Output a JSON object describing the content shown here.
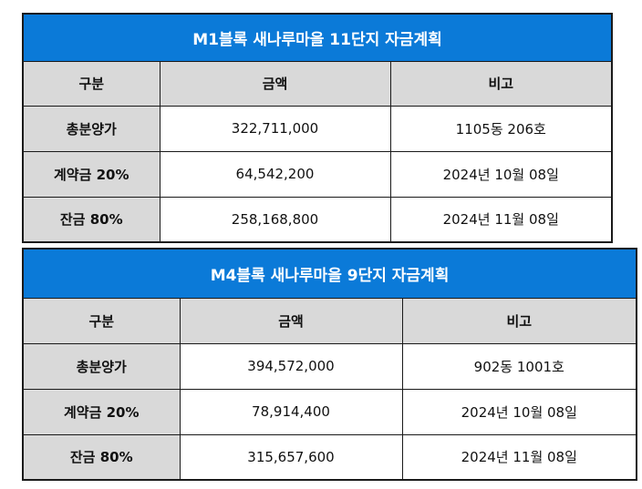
{
  "tables": [
    {
      "title": "M1블록 새나루마을 11단지 자금계획",
      "headers": [
        "구분",
        "금액",
        "비고"
      ],
      "rows": [
        {
          "label": "총분양가",
          "amount": "322,711,000",
          "note": "1105동 206호"
        },
        {
          "label": "계약금 20%",
          "amount": "64,542,200",
          "note": "2024년 10월 08일"
        },
        {
          "label": "잔금 80%",
          "amount": "258,168,800",
          "note": "2024년 11월 08일"
        }
      ]
    },
    {
      "title": "M4블록 새나루마을 9단지 자금계획",
      "headers": [
        "구분",
        "금액",
        "비고"
      ],
      "rows": [
        {
          "label": "총분양가",
          "amount": "394,572,000",
          "note": "902동 1001호"
        },
        {
          "label": "계약금 20%",
          "amount": "78,914,400",
          "note": "2024년 10월 08일"
        },
        {
          "label": "잔금 80%",
          "amount": "315,657,600",
          "note": "2024년 11월 08일"
        }
      ]
    }
  ],
  "colors": {
    "title_bg": "#0b7ad8",
    "header_bg": "#d9d9d9",
    "border": "#1a1a1a"
  }
}
